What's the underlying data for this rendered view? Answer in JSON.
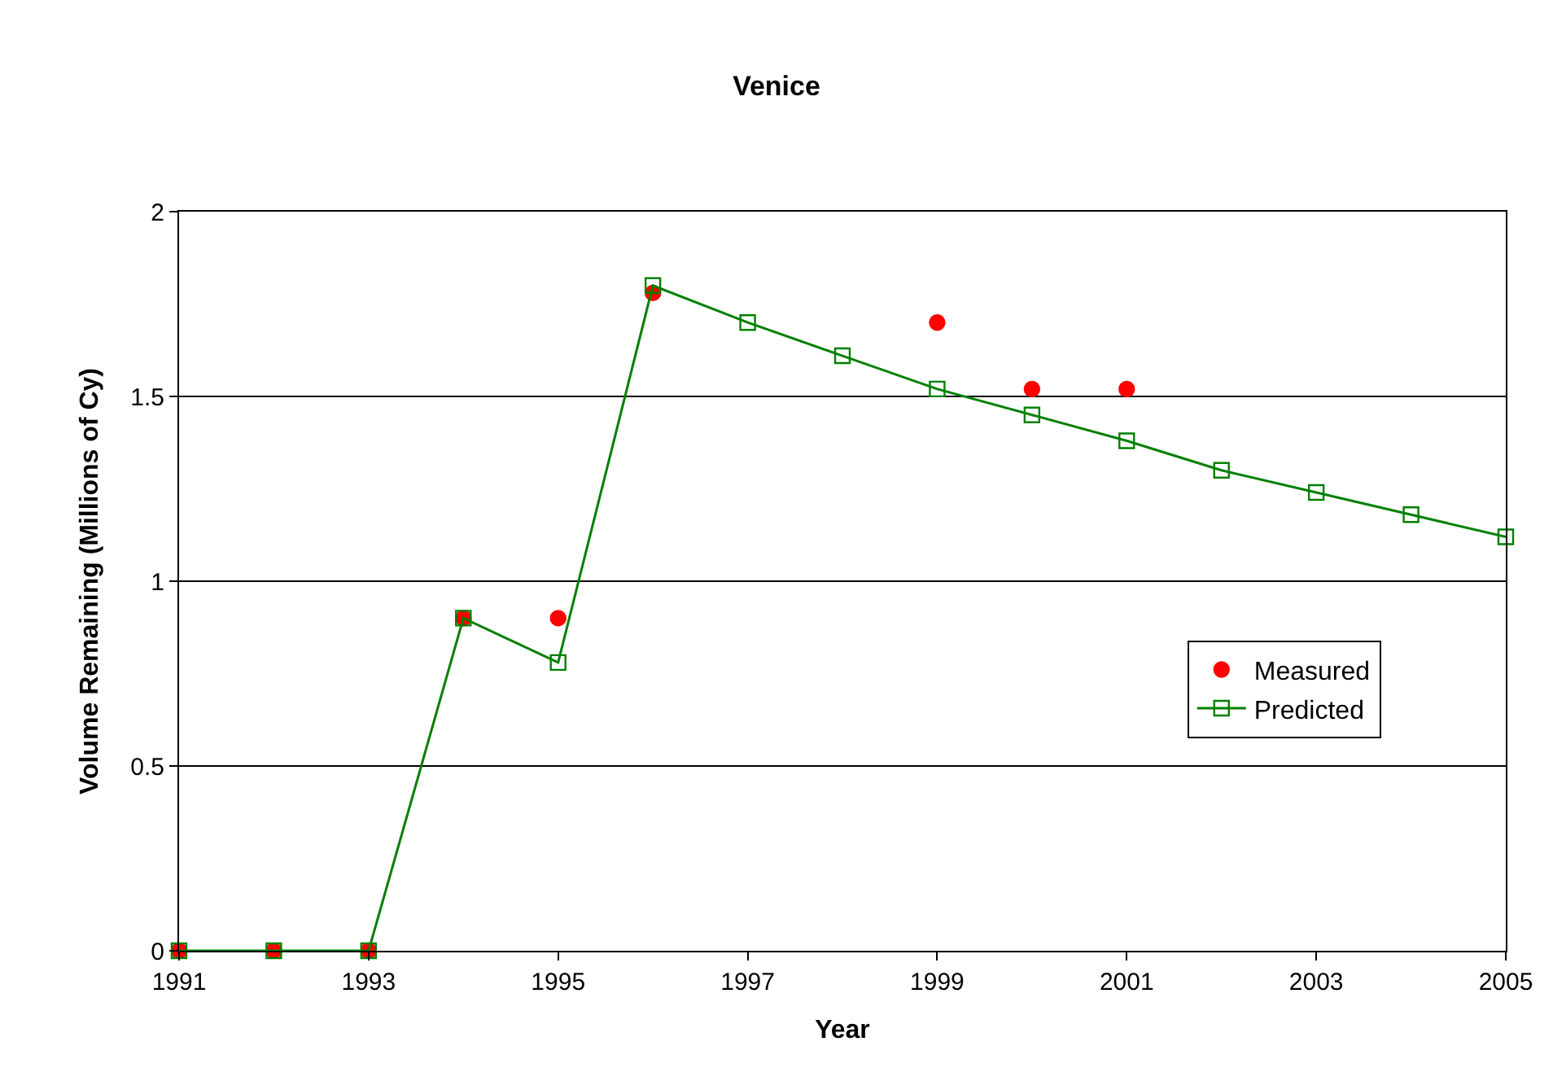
{
  "chart_data": {
    "type": "line",
    "title": "Venice",
    "xlabel": "Year",
    "ylabel": "Volume Remaining (Millions of Cy)",
    "xlim": [
      1991,
      2005
    ],
    "xticks": [
      1991,
      1993,
      1995,
      1997,
      1999,
      2001,
      2003,
      2005
    ],
    "ylim": [
      0,
      2
    ],
    "yticks": [
      0,
      0.5,
      1,
      1.5,
      2
    ],
    "grid": "y",
    "legend": "right",
    "series": [
      {
        "name": "Measured",
        "type": "scatter",
        "color": "#ff0000",
        "marker": "circle",
        "x": [
          1991,
          1992,
          1993,
          1994,
          1995,
          1996,
          1999,
          2000,
          2001
        ],
        "values": [
          0,
          0,
          0,
          0.9,
          0.9,
          1.78,
          1.7,
          1.52,
          1.52
        ]
      },
      {
        "name": "Predicted",
        "color": "#008000",
        "marker": "square",
        "line_style": "solid",
        "x": [
          1991,
          1992,
          1993,
          1994,
          1995,
          1996,
          1997,
          1998,
          1999,
          2000,
          2001,
          2002,
          2003,
          2004,
          2005
        ],
        "values": [
          0,
          0,
          0,
          0.9,
          0.78,
          1.8,
          1.7,
          1.61,
          1.52,
          1.45,
          1.38,
          1.3,
          1.24,
          1.18,
          1.12
        ]
      }
    ]
  }
}
